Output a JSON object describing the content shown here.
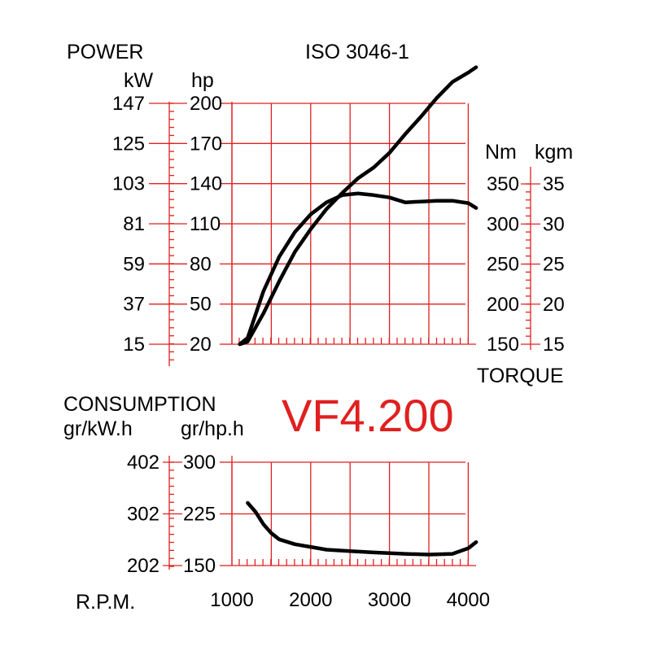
{
  "colors": {
    "grid": "#e02020",
    "curve": "#000000",
    "model": "#e02020",
    "text": "#000000"
  },
  "chart_data": [
    {
      "type": "line",
      "name_label": "POWER",
      "standard": "ISO 3046-1",
      "x": {
        "values": [
          1000,
          1500,
          2000,
          2500,
          3000,
          3500,
          4000
        ],
        "ticklabels": [
          "1000",
          "2000",
          "3000",
          "4000"
        ]
      },
      "left_axis_kw": {
        "unit": "kW",
        "ticks": [
          "147",
          "125",
          "103",
          "81",
          "59",
          "37",
          "15"
        ]
      },
      "left_axis_hp": {
        "unit": "hp",
        "ticks": [
          "200",
          "170",
          "140",
          "110",
          "80",
          "50",
          "20"
        ],
        "ylim": [
          20,
          200
        ]
      },
      "right_axis_nm": {
        "unit": "Nm",
        "ticks": [
          "350",
          "300",
          "250",
          "200",
          "150"
        ],
        "ylim": [
          150,
          350
        ]
      },
      "right_axis_kgm": {
        "unit": "kgm",
        "ticks": [
          "35",
          "30",
          "25",
          "20",
          "15"
        ]
      },
      "right_label": "TORQUE",
      "series": [
        {
          "x": [
            1100,
            1200,
            1400,
            1600,
            1800,
            2000,
            2200,
            2400,
            2600,
            2800,
            3000,
            3200,
            3400,
            3600,
            3800,
            4000,
            4100
          ],
          "hp": [
            20,
            22,
            43,
            67,
            89,
            106,
            121,
            133,
            144,
            152,
            163,
            177,
            190,
            204,
            216,
            223,
            227
          ]
        },
        {
          "x": [
            1100,
            1200,
            1400,
            1600,
            1800,
            2000,
            2200,
            2400,
            2600,
            2800,
            3000,
            3200,
            3400,
            3600,
            3800,
            4000,
            4100
          ],
          "nm": [
            150,
            158,
            216,
            259,
            290,
            312,
            327,
            336,
            338,
            336,
            333,
            327,
            328,
            329,
            329,
            326,
            320
          ]
        }
      ]
    },
    {
      "type": "line",
      "name_label": "CONSUMPTION",
      "left_axis_kwh": {
        "unit": "gr/kW.h",
        "ticks": [
          "402",
          "302",
          "202"
        ]
      },
      "left_axis_hph": {
        "unit": "gr/hp.h",
        "ticks": [
          "300",
          "225",
          "150"
        ],
        "ylim": [
          150,
          300
        ]
      },
      "x_label": "R.P.M.",
      "series": [
        {
          "x": [
            1200,
            1300,
            1400,
            1500,
            1600,
            1800,
            2000,
            2200,
            2500,
            2800,
            3000,
            3200,
            3500,
            3800,
            4000,
            4100
          ],
          "gr_hp_h": [
            241,
            228,
            210,
            197,
            188,
            181,
            177,
            173,
            171,
            169,
            168,
            167,
            166,
            167,
            175,
            184
          ]
        }
      ]
    }
  ],
  "model": "VF4.200"
}
